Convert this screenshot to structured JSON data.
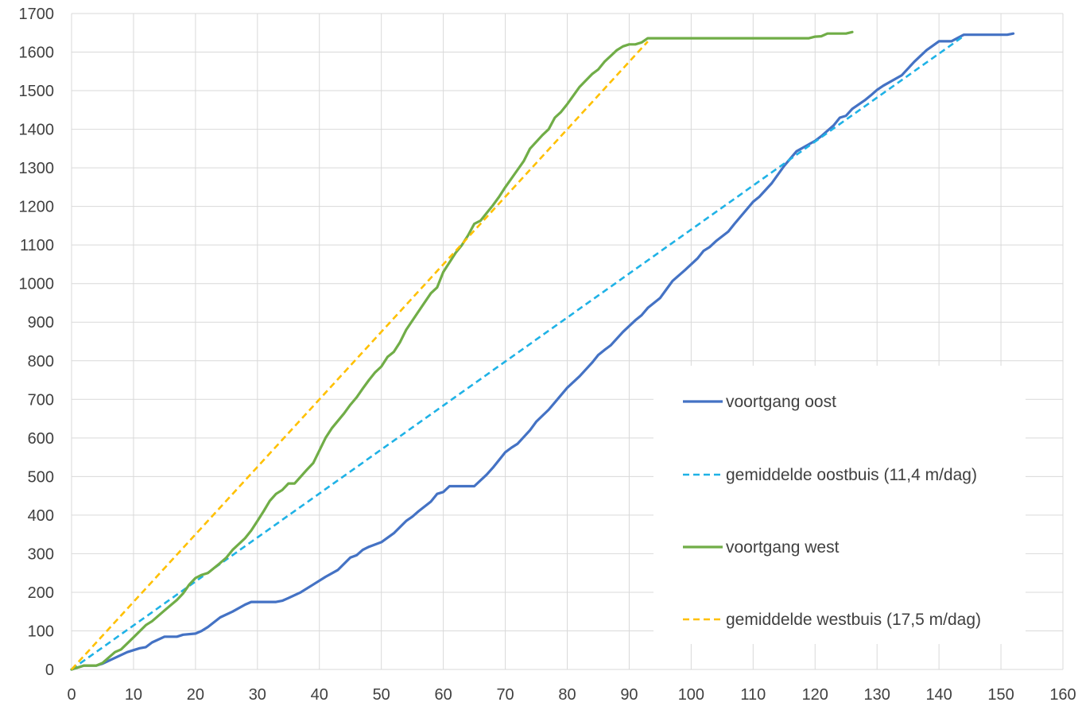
{
  "chart_data": {
    "type": "line",
    "title": "",
    "xlabel": "",
    "ylabel": "",
    "xlim": [
      0,
      160
    ],
    "ylim": [
      0,
      1700
    ],
    "x_ticks": [
      0,
      10,
      20,
      30,
      40,
      50,
      60,
      70,
      80,
      90,
      100,
      110,
      120,
      130,
      140,
      150,
      160
    ],
    "y_ticks": [
      0,
      100,
      200,
      300,
      400,
      500,
      600,
      700,
      800,
      900,
      1000,
      1100,
      1200,
      1300,
      1400,
      1500,
      1600,
      1700
    ],
    "grid": true,
    "legend_position": "right",
    "series": [
      {
        "name": "voortgang oost",
        "color": "#4472c4",
        "dash": false,
        "points": [
          [
            0,
            0
          ],
          [
            2,
            10
          ],
          [
            4,
            10
          ],
          [
            5,
            15
          ],
          [
            7,
            30
          ],
          [
            9,
            45
          ],
          [
            11,
            55
          ],
          [
            12,
            58
          ],
          [
            13,
            70
          ],
          [
            15,
            85
          ],
          [
            17,
            85
          ],
          [
            18,
            90
          ],
          [
            20,
            93
          ],
          [
            21,
            100
          ],
          [
            22,
            110
          ],
          [
            24,
            135
          ],
          [
            26,
            150
          ],
          [
            28,
            168
          ],
          [
            29,
            175
          ],
          [
            33,
            175
          ],
          [
            34,
            178
          ],
          [
            35,
            185
          ],
          [
            37,
            200
          ],
          [
            39,
            220
          ],
          [
            41,
            240
          ],
          [
            43,
            258
          ],
          [
            45,
            290
          ],
          [
            46,
            296
          ],
          [
            47,
            310
          ],
          [
            48,
            318
          ],
          [
            50,
            330
          ],
          [
            52,
            353
          ],
          [
            54,
            385
          ],
          [
            55,
            396
          ],
          [
            56,
            410
          ],
          [
            58,
            435
          ],
          [
            59,
            455
          ],
          [
            60,
            460
          ],
          [
            61,
            475
          ],
          [
            65,
            475
          ],
          [
            67,
            505
          ],
          [
            68,
            523
          ],
          [
            70,
            563
          ],
          [
            71,
            575
          ],
          [
            72,
            585
          ],
          [
            74,
            620
          ],
          [
            75,
            642
          ],
          [
            77,
            673
          ],
          [
            80,
            730
          ],
          [
            82,
            760
          ],
          [
            84,
            795
          ],
          [
            85,
            815
          ],
          [
            86,
            828
          ],
          [
            87,
            840
          ],
          [
            89,
            875
          ],
          [
            91,
            905
          ],
          [
            92,
            918
          ],
          [
            93,
            937
          ],
          [
            95,
            963
          ],
          [
            96,
            985
          ],
          [
            97,
            1007
          ],
          [
            99,
            1035
          ],
          [
            101,
            1065
          ],
          [
            102,
            1085
          ],
          [
            103,
            1095
          ],
          [
            104,
            1110
          ],
          [
            106,
            1135
          ],
          [
            107,
            1155
          ],
          [
            110,
            1212
          ],
          [
            111,
            1225
          ],
          [
            113,
            1260
          ],
          [
            115,
            1305
          ],
          [
            117,
            1343
          ],
          [
            120,
            1370
          ],
          [
            121,
            1382
          ],
          [
            123,
            1410
          ],
          [
            124,
            1430
          ],
          [
            125,
            1435
          ],
          [
            126,
            1453
          ],
          [
            128,
            1475
          ],
          [
            129,
            1488
          ],
          [
            130,
            1502
          ],
          [
            131,
            1513
          ],
          [
            134,
            1540
          ],
          [
            136,
            1575
          ],
          [
            138,
            1605
          ],
          [
            140,
            1628
          ],
          [
            142,
            1628
          ],
          [
            144,
            1645
          ],
          [
            151,
            1645
          ],
          [
            152,
            1648
          ]
        ]
      },
      {
        "name": "gemiddelde oostbuis (11,4 m/dag)",
        "color": "#1fb2e6",
        "dash": true,
        "points": [
          [
            0,
            0
          ],
          [
            144,
            1641.6
          ]
        ]
      },
      {
        "name": "voortgang west",
        "color": "#70ad47",
        "dash": false,
        "points": [
          [
            0,
            0
          ],
          [
            2,
            10
          ],
          [
            4,
            10
          ],
          [
            5,
            17
          ],
          [
            7,
            45
          ],
          [
            8,
            52
          ],
          [
            10,
            83
          ],
          [
            12,
            115
          ],
          [
            13,
            125
          ],
          [
            15,
            153
          ],
          [
            17,
            180
          ],
          [
            18,
            197
          ],
          [
            19,
            220
          ],
          [
            20,
            237
          ],
          [
            21,
            245
          ],
          [
            22,
            250
          ],
          [
            24,
            276
          ],
          [
            25,
            290
          ],
          [
            26,
            310
          ],
          [
            28,
            340
          ],
          [
            29,
            360
          ],
          [
            30,
            385
          ],
          [
            31,
            410
          ],
          [
            32,
            437
          ],
          [
            33,
            455
          ],
          [
            34,
            465
          ],
          [
            35,
            482
          ],
          [
            36,
            482
          ],
          [
            38,
            518
          ],
          [
            39,
            535
          ],
          [
            41,
            600
          ],
          [
            42,
            625
          ],
          [
            44,
            664
          ],
          [
            45,
            686
          ],
          [
            46,
            705
          ],
          [
            47,
            728
          ],
          [
            48,
            750
          ],
          [
            49,
            770
          ],
          [
            50,
            785
          ],
          [
            51,
            810
          ],
          [
            52,
            823
          ],
          [
            53,
            848
          ],
          [
            54,
            880
          ],
          [
            56,
            928
          ],
          [
            58,
            975
          ],
          [
            59,
            990
          ],
          [
            60,
            1030
          ],
          [
            62,
            1080
          ],
          [
            63,
            1100
          ],
          [
            64,
            1125
          ],
          [
            65,
            1155
          ],
          [
            66,
            1163
          ],
          [
            67,
            1183
          ],
          [
            68,
            1203
          ],
          [
            69,
            1225
          ],
          [
            70,
            1250
          ],
          [
            72,
            1295
          ],
          [
            73,
            1318
          ],
          [
            74,
            1350
          ],
          [
            76,
            1385
          ],
          [
            77,
            1400
          ],
          [
            78,
            1430
          ],
          [
            79,
            1445
          ],
          [
            80,
            1465
          ],
          [
            82,
            1510
          ],
          [
            84,
            1543
          ],
          [
            85,
            1555
          ],
          [
            86,
            1575
          ],
          [
            87,
            1590
          ],
          [
            88,
            1605
          ],
          [
            89,
            1615
          ],
          [
            90,
            1620
          ],
          [
            91,
            1620
          ],
          [
            92,
            1625
          ],
          [
            93,
            1636
          ],
          [
            119,
            1636
          ],
          [
            120,
            1640
          ],
          [
            121,
            1641
          ],
          [
            122,
            1648
          ],
          [
            125,
            1648
          ],
          [
            126,
            1652
          ]
        ]
      },
      {
        "name": "gemiddelde westbuis (17,5 m/dag)",
        "color": "#ffc000",
        "dash": true,
        "points": [
          [
            0,
            0
          ],
          [
            93,
            1627.5
          ]
        ]
      }
    ]
  }
}
